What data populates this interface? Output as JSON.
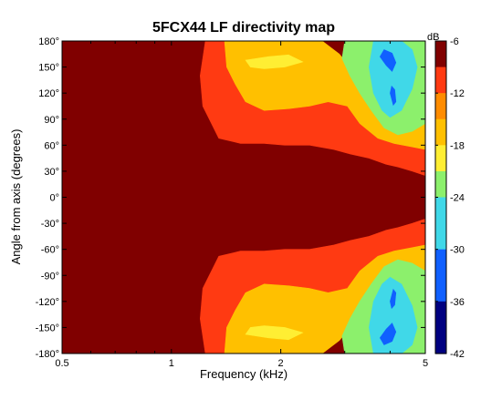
{
  "chart_data": {
    "type": "heatmap",
    "subtype": "filled-contour",
    "title": "5FCX44 LF directivity map",
    "xlabel": "Frequency (kHz)",
    "ylabel": "Angle from axis (degrees)",
    "x_scale": "log",
    "xlim": [
      0.5,
      5
    ],
    "ylim": [
      -180,
      180
    ],
    "x_ticks": [
      0.5,
      1,
      2,
      5
    ],
    "x_tick_labels": [
      "0.5",
      "1",
      "2",
      "5"
    ],
    "y_ticks": [
      180,
      150,
      120,
      90,
      60,
      30,
      0,
      -30,
      -60,
      -90,
      -120,
      -150,
      -180
    ],
    "y_tick_labels": [
      "180°",
      "150°",
      "120°",
      "90°",
      "60°",
      "30°",
      "0°",
      "-30°",
      "-60°",
      "-90°",
      "-120°",
      "-150°",
      "-180°"
    ],
    "colorbar": {
      "unit": "dB",
      "range": [
        -42,
        -6
      ],
      "ticks": [
        -6,
        -12,
        -18,
        -24,
        -30,
        -36,
        -42
      ],
      "tick_labels": [
        "-6",
        "-12",
        "-18",
        "-24",
        "-30",
        "-36",
        "-42"
      ],
      "levels": [
        {
          "min": -9,
          "color": "#800000"
        },
        {
          "min": -12,
          "color": "#ff3a12"
        },
        {
          "min": -15,
          "color": "#ff8c00"
        },
        {
          "min": -18,
          "color": "#ffc000"
        },
        {
          "min": -21,
          "color": "#ffee33"
        },
        {
          "min": -24,
          "color": "#8cf06c"
        },
        {
          "min": -30,
          "color": "#40d8e8"
        },
        {
          "min": -36,
          "color": "#1060ff"
        },
        {
          "min": -42,
          "color": "#000080"
        }
      ]
    },
    "contours": {
      "symmetric_about_zero": true,
      "bands_upper_half": [
        {
          "level": -9,
          "points": [
            [
              0.5,
              0
            ],
            [
              5,
              0
            ],
            [
              5,
              25
            ],
            [
              4.6,
              30
            ],
            [
              4.2,
              35
            ],
            [
              3.9,
              38
            ],
            [
              3.5,
              45
            ],
            [
              3.1,
              50
            ],
            [
              2.8,
              55
            ],
            [
              2.4,
              60
            ],
            [
              2.05,
              60
            ],
            [
              1.8,
              62
            ],
            [
              1.55,
              62
            ],
            [
              1.35,
              68
            ],
            [
              1.22,
              105
            ],
            [
              1.2,
              140
            ],
            [
              1.24,
              180
            ],
            [
              1.1,
              180
            ],
            [
              1.02,
              150
            ],
            [
              0.9,
              115
            ],
            [
              0.8,
              95
            ],
            [
              0.72,
              110
            ],
            [
              0.62,
              140
            ],
            [
              0.56,
              160
            ],
            [
              0.5,
              165
            ]
          ]
        },
        {
          "level": -12,
          "points": [
            [
              1.24,
              180
            ],
            [
              1.2,
              140
            ],
            [
              1.22,
              105
            ],
            [
              1.35,
              68
            ],
            [
              1.55,
              62
            ],
            [
              1.8,
              62
            ],
            [
              2.05,
              60
            ],
            [
              2.4,
              60
            ],
            [
              2.8,
              55
            ],
            [
              3.1,
              50
            ],
            [
              3.5,
              45
            ],
            [
              3.9,
              38
            ],
            [
              4.2,
              35
            ],
            [
              4.6,
              30
            ],
            [
              5,
              25
            ],
            [
              5,
              55
            ],
            [
              4.6,
              58
            ],
            [
              4.1,
              62
            ],
            [
              3.7,
              68
            ],
            [
              3.3,
              85
            ],
            [
              3.05,
              105
            ],
            [
              2.7,
              110
            ],
            [
              2.4,
              105
            ],
            [
              2.1,
              102
            ],
            [
              1.8,
              100
            ],
            [
              1.6,
              110
            ],
            [
              1.5,
              130
            ],
            [
              1.42,
              150
            ],
            [
              1.4,
              180
            ]
          ]
        },
        {
          "level": -18,
          "points": [
            [
              1.4,
              180
            ],
            [
              1.42,
              150
            ],
            [
              1.5,
              130
            ],
            [
              1.6,
              110
            ],
            [
              1.8,
              100
            ],
            [
              2.1,
              102
            ],
            [
              2.4,
              105
            ],
            [
              2.7,
              110
            ],
            [
              3.05,
              105
            ],
            [
              3.3,
              85
            ],
            [
              3.7,
              68
            ],
            [
              4.1,
              62
            ],
            [
              4.6,
              58
            ],
            [
              5,
              55
            ],
            [
              5,
              100
            ],
            [
              4.8,
              125
            ],
            [
              4.5,
              150
            ],
            [
              4.2,
              165
            ],
            [
              3.8,
              165
            ],
            [
              3.4,
              155
            ],
            [
              3.1,
              150
            ],
            [
              2.9,
              165
            ],
            [
              2.6,
              180
            ]
          ]
        },
        {
          "level": -21,
          "points": [
            [
              1.6,
              158
            ],
            [
              1.85,
              162
            ],
            [
              2.1,
              164
            ],
            [
              2.3,
              156
            ],
            [
              2.05,
              150
            ],
            [
              1.8,
              148
            ],
            [
              1.65,
              150
            ]
          ]
        },
        {
          "level": -24,
          "points": [
            [
              3.0,
              180
            ],
            [
              2.95,
              160
            ],
            [
              3.1,
              140
            ],
            [
              3.3,
              120
            ],
            [
              3.55,
              100
            ],
            [
              3.85,
              80
            ],
            [
              4.2,
              72
            ],
            [
              4.6,
              76
            ],
            [
              5,
              85
            ],
            [
              5,
              180
            ]
          ]
        },
        {
          "level": -30,
          "points": [
            [
              3.6,
              180
            ],
            [
              3.5,
              150
            ],
            [
              3.6,
              120
            ],
            [
              3.8,
              100
            ],
            [
              4.0,
              92
            ],
            [
              4.3,
              100
            ],
            [
              4.6,
              125
            ],
            [
              4.75,
              150
            ],
            [
              4.6,
              170
            ],
            [
              4.3,
              180
            ]
          ]
        },
        {
          "level": -36,
          "points": [
            [
              3.75,
              162
            ],
            [
              3.9,
              152
            ],
            [
              4.05,
              145
            ],
            [
              4.15,
              155
            ],
            [
              4.05,
              166
            ],
            [
              3.85,
              170
            ]
          ]
        },
        {
          "level": -36,
          "points": [
            [
              4.0,
              120
            ],
            [
              4.08,
              106
            ],
            [
              4.15,
              110
            ],
            [
              4.12,
              124
            ],
            [
              4.04,
              128
            ]
          ]
        }
      ]
    }
  }
}
